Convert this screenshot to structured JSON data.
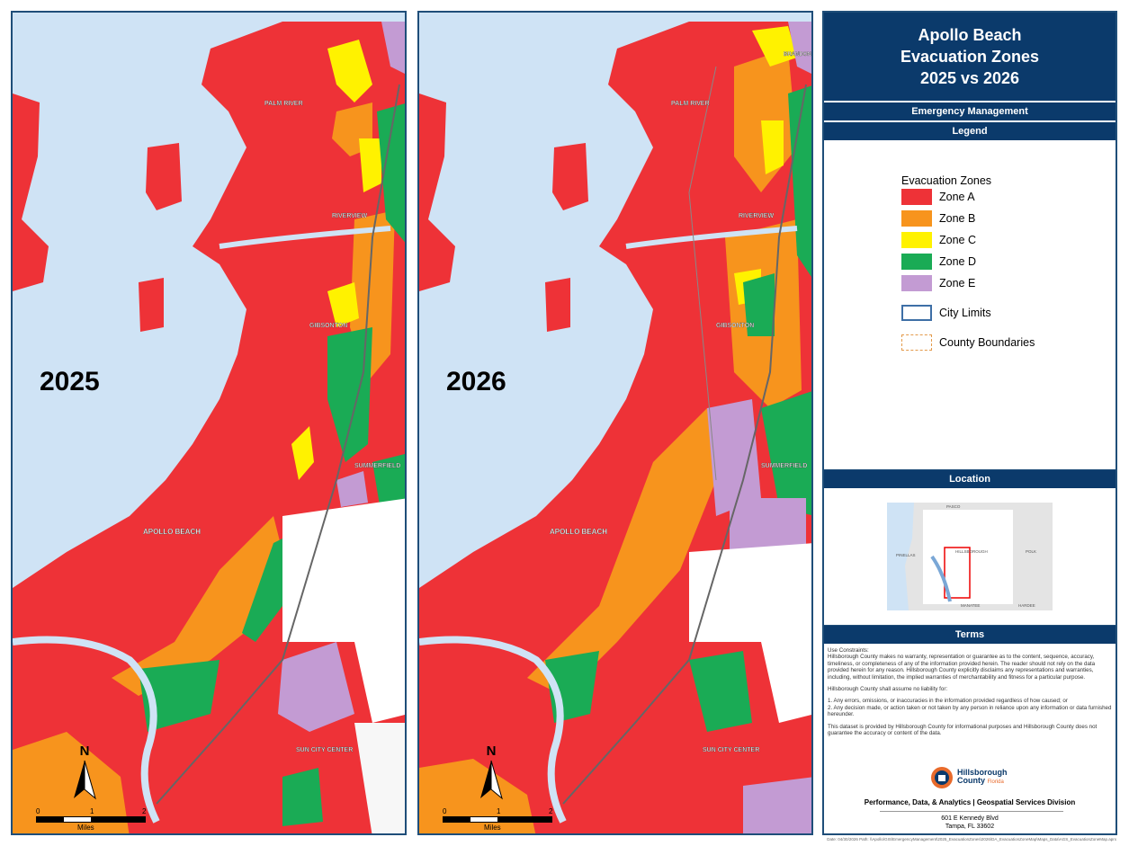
{
  "maps": {
    "left": {
      "year": "2025"
    },
    "right": {
      "year": "2026"
    }
  },
  "map_labels": {
    "north": "N",
    "scale_ticks": [
      "0",
      "1",
      "2"
    ],
    "scale_unit": "Miles",
    "places": [
      "PALM RIVER",
      "RIVERVIEW",
      "GIBSONTON",
      "SUMMERFIELD",
      "APOLLO BEACH",
      "SUN CITY CENTER",
      "BRANDON"
    ]
  },
  "panel": {
    "title": "Apollo Beach\nEvacuation Zones\n2025 vs 2026",
    "department": "Emergency Management",
    "legend_header": "Legend",
    "legend_title": "Evacuation Zones",
    "legend_items": [
      {
        "label": "Zone A",
        "color": "#ee3237"
      },
      {
        "label": "Zone B",
        "color": "#f7941d"
      },
      {
        "label": "Zone C",
        "color": "#fff200"
      },
      {
        "label": "Zone D",
        "color": "#1aab55"
      },
      {
        "label": "Zone E",
        "color": "#c39bd3"
      },
      {
        "label": "City Limits",
        "color": "#3e6fa6"
      },
      {
        "label": "County Boundaries",
        "color": "#e39a4a"
      }
    ],
    "location_header": "Location",
    "location_labels": {
      "pasco": "PASCO",
      "pinellas": "PINELLAS",
      "hillsborough": "HILLSBOROUGH",
      "polk": "POLK",
      "manatee": "MANATEE",
      "hardee": "HARDEE"
    },
    "terms_header": "Terms",
    "terms": [
      "Use Constraints:\nHillsborough County makes no warranty, representation or guarantee as to the content, sequence, accuracy, timeliness, or completeness of any of the information provided herein. The reader should not rely on the data provided herein for any reason. Hillsborough County explicitly disclaims any representations and warranties, including, without limitation, the implied warranties of merchantability and fitness for a particular purpose.",
      "Hillsborough County shall assume no liability for:",
      "1. Any errors, omissions, or inaccuracies in the information provided regardless of how caused; or\n2. Any decision made, or action taken or not taken by any person in reliance upon any information or data furnished hereunder.",
      "This dataset is provided by Hillsborough County for informational purposes and Hillsborough County does not guarantee the accuracy or content of the data."
    ],
    "logo_line1": "Hillsborough",
    "logo_line2": "County",
    "logo_line3": "Florida",
    "division": "Performance, Data, & Analytics | Geospatial Services Division",
    "address1": "601 E Kennedy Blvd",
    "address2": "Tampa, FL 33602"
  },
  "footer_note": "Date: 04/30/2026   Path: \\\\Apollo\\GIS\\EmergencyManagement\\2025_EvacuationZones\\2026\\DA_EvacuationZoneMap\\Maps_Data\\AGS_EvacuationZoneMap.aprx",
  "colors": {
    "water": "#cfe3f5",
    "zone_a": "#ee3237",
    "zone_b": "#f7941d",
    "zone_c": "#fff200",
    "zone_d": "#1aab55",
    "zone_e": "#c39bd3",
    "navy": "#0b3a6b"
  }
}
